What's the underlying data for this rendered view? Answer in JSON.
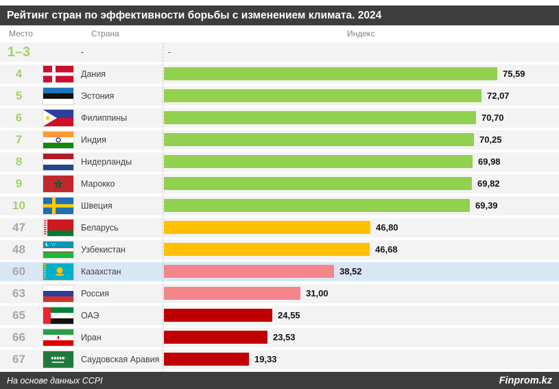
{
  "title": "Рейтинг стран по эффективности борьбы с изменением климата. 2024",
  "columns": {
    "rank": "Место",
    "country": "Страна",
    "index": "Индекс"
  },
  "footer": {
    "source": "На основе данных CCPI",
    "brand": "Finprom.kz"
  },
  "colors": {
    "title_bar": "#3d3d3d",
    "row_strip": "#f3f3f3",
    "highlight_row": "#d9e7f5",
    "bar_green": "#92d050",
    "bar_yellow": "#fdc101",
    "bar_pink": "#f4868b",
    "bar_red": "#c00000",
    "rank_green": "#a3d06a",
    "rank_gray": "#a6a6a6",
    "header_text": "#7f7f7f",
    "country_text": "#404040"
  },
  "chart_data": {
    "type": "bar",
    "orientation": "horizontal",
    "title": "Рейтинг стран по эффективности борьбы с изменением климата. 2024",
    "categories": [
      "Дания",
      "Эстония",
      "Филиппины",
      "Индия",
      "Нидерланды",
      "Марокко",
      "Швеция",
      "Беларусь",
      "Узбекистан",
      "Казахстан",
      "Россия",
      "ОАЭ",
      "Иран",
      "Саудовская Аравия"
    ],
    "ranks": [
      "4",
      "5",
      "6",
      "7",
      "8",
      "9",
      "10",
      "47",
      "48",
      "60",
      "63",
      "65",
      "66",
      "67"
    ],
    "values": [
      75.59,
      72.07,
      70.7,
      70.25,
      69.98,
      69.82,
      69.39,
      46.8,
      46.68,
      38.52,
      31.0,
      24.55,
      23.53,
      19.33
    ],
    "note_row": {
      "rank": "1–3",
      "country": "-",
      "value": "-"
    },
    "highlighted_category": "Казахстан",
    "value_format": "decimal-comma",
    "xlim": [
      0,
      80
    ],
    "legend": false,
    "grid": false,
    "source_note": "На основе данных CCPI"
  },
  "rows": [
    {
      "rank": "1–3",
      "country": "-",
      "value": null,
      "value_label": "-",
      "flag": null,
      "bar_color": null,
      "rank_color": "#a3d06a",
      "highlighted": false
    },
    {
      "rank": "4",
      "country": "Дания",
      "value": 75.59,
      "value_label": "75,59",
      "flag": "denmark",
      "bar_color": "#92d050",
      "rank_color": "#a3d06a",
      "highlighted": false
    },
    {
      "rank": "5",
      "country": "Эстония",
      "value": 72.07,
      "value_label": "72,07",
      "flag": "estonia",
      "bar_color": "#92d050",
      "rank_color": "#a3d06a",
      "highlighted": false
    },
    {
      "rank": "6",
      "country": "Филиппины",
      "value": 70.7,
      "value_label": "70,70",
      "flag": "philippines",
      "bar_color": "#92d050",
      "rank_color": "#a3d06a",
      "highlighted": false
    },
    {
      "rank": "7",
      "country": "Индия",
      "value": 70.25,
      "value_label": "70,25",
      "flag": "india",
      "bar_color": "#92d050",
      "rank_color": "#a3d06a",
      "highlighted": false
    },
    {
      "rank": "8",
      "country": "Нидерланды",
      "value": 69.98,
      "value_label": "69,98",
      "flag": "netherlands",
      "bar_color": "#92d050",
      "rank_color": "#a3d06a",
      "highlighted": false
    },
    {
      "rank": "9",
      "country": "Марокко",
      "value": 69.82,
      "value_label": "69,82",
      "flag": "morocco",
      "bar_color": "#92d050",
      "rank_color": "#a3d06a",
      "highlighted": false
    },
    {
      "rank": "10",
      "country": "Швеция",
      "value": 69.39,
      "value_label": "69,39",
      "flag": "sweden",
      "bar_color": "#92d050",
      "rank_color": "#a3d06a",
      "highlighted": false
    },
    {
      "rank": "47",
      "country": "Беларусь",
      "value": 46.8,
      "value_label": "46,80",
      "flag": "belarus",
      "bar_color": "#fdc101",
      "rank_color": "#a6a6a6",
      "highlighted": false
    },
    {
      "rank": "48",
      "country": "Узбекистан",
      "value": 46.68,
      "value_label": "46,68",
      "flag": "uzbekistan",
      "bar_color": "#fdc101",
      "rank_color": "#a6a6a6",
      "highlighted": false
    },
    {
      "rank": "60",
      "country": "Казахстан",
      "value": 38.52,
      "value_label": "38,52",
      "flag": "kazakhstan",
      "bar_color": "#f4868b",
      "rank_color": "#a6a6a6",
      "highlighted": true
    },
    {
      "rank": "63",
      "country": "Россия",
      "value": 31.0,
      "value_label": "31,00",
      "flag": "russia",
      "bar_color": "#f4868b",
      "rank_color": "#a6a6a6",
      "highlighted": false
    },
    {
      "rank": "65",
      "country": "ОАЭ",
      "value": 24.55,
      "value_label": "24,55",
      "flag": "uae",
      "bar_color": "#c00000",
      "rank_color": "#a6a6a6",
      "highlighted": false
    },
    {
      "rank": "66",
      "country": "Иран",
      "value": 23.53,
      "value_label": "23,53",
      "flag": "iran",
      "bar_color": "#c00000",
      "rank_color": "#a6a6a6",
      "highlighted": false
    },
    {
      "rank": "67",
      "country": "Саудовская Аравия",
      "value": 19.33,
      "value_label": "19,33",
      "flag": "saudi_arabia",
      "bar_color": "#c00000",
      "rank_color": "#a6a6a6",
      "highlighted": false
    }
  ]
}
